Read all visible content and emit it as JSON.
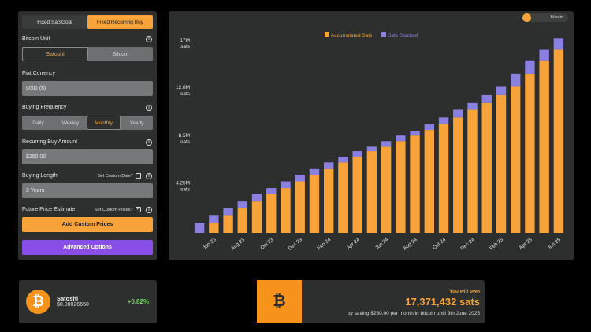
{
  "left_panel": {
    "mode_tabs": [
      "Fixed SatsGoal",
      "Fixed Recurring Buy"
    ],
    "active_mode": 1,
    "bitcoin_unit": {
      "label": "Bitcoin Unit",
      "options": [
        "Satoshi",
        "Bitcoin"
      ],
      "active": 0
    },
    "fiat_currency": {
      "label": "Fiat Currency",
      "value": "USD ($)"
    },
    "buying_frequency": {
      "label": "Buying Frequency",
      "options": [
        "Daily",
        "Weekly",
        "Monthly",
        "Yearly"
      ],
      "active": 2
    },
    "recurring_amount": {
      "label": "Recurring Buy Amount",
      "value": "$250.00"
    },
    "buying_length": {
      "label": "Buying Length",
      "custom_date_label": "Set Custom Date?",
      "custom_date_checked": false,
      "value": "2 Years"
    },
    "future_price": {
      "label": "Future Price Estimate",
      "custom_prices_label": "Set Custom Prices?",
      "custom_prices_checked": true,
      "checkmark": "✓"
    },
    "add_custom_prices_label": "Add Custom Prices",
    "advanced_options_label": "Advanced Options",
    "info_glyph": "i"
  },
  "chart_toggle_label": "Bitcoin",
  "chart_data": {
    "type": "bar",
    "stacked": true,
    "categories": [
      "May 23",
      "Jun 23",
      "Jul 23",
      "Aug 23",
      "Sep 23",
      "Oct 23",
      "Nov 23",
      "Dec 23",
      "Jan 24",
      "Feb 24",
      "Mar 24",
      "Apr 24",
      "May 24",
      "Jun 24",
      "Jul 24",
      "Aug 24",
      "Sep 24",
      "Oct 24",
      "Nov 24",
      "Dec 24",
      "Jan 25",
      "Feb 25",
      "Mar 25",
      "Apr 25",
      "May 25",
      "Jun 25"
    ],
    "tick_labels": [
      "Jun 23",
      "Aug 23",
      "Oct 23",
      "Dec 23",
      "Feb 24",
      "Apr 24",
      "Jun 24",
      "Aug 24",
      "Oct 24",
      "Dec 24",
      "Feb 25",
      "Apr 25",
      "Jun 25"
    ],
    "series": [
      {
        "name": "Accumulated Sats",
        "color": "#f7a33a",
        "values": [
          0,
          0.9,
          1.6,
          2.2,
          2.8,
          3.5,
          4.0,
          4.6,
          5.2,
          5.7,
          6.3,
          6.8,
          7.3,
          7.7,
          8.2,
          8.7,
          9.2,
          9.7,
          10.3,
          11.0,
          11.6,
          12.3,
          13.1,
          14.2,
          15.4,
          16.4
        ]
      },
      {
        "name": "Sats Stacked",
        "color": "#8a80e0",
        "values": [
          0.9,
          0.7,
          0.6,
          0.6,
          0.7,
          0.5,
          0.6,
          0.6,
          0.5,
          0.6,
          0.5,
          0.5,
          0.4,
          0.5,
          0.5,
          0.4,
          0.5,
          0.6,
          0.7,
          0.6,
          0.7,
          0.8,
          1.1,
          1.2,
          1.0,
          1.0
        ]
      }
    ],
    "y_ticks": [
      {
        "value": 4.25,
        "label": "4.25M",
        "unit": "sats"
      },
      {
        "value": 8.5,
        "label": "8.5M",
        "unit": "sats"
      },
      {
        "value": 12.8,
        "label": "12.8M",
        "unit": "sats"
      },
      {
        "value": 17,
        "label": "17M",
        "unit": "sats"
      }
    ],
    "ylim": [
      0,
      17
    ],
    "legend_position": "top-center",
    "grid": false
  },
  "ticker": {
    "symbol": "₿",
    "name": "Satoshi",
    "price": "$0.00026650",
    "change": "+0.82%",
    "change_color": "#7bd86a"
  },
  "summary": {
    "icon": "₿",
    "title": "You will own",
    "amount": "17,371,432",
    "unit": "sats",
    "description": "by saving $250.00 per month in bitcoin until 9th June 2025"
  }
}
